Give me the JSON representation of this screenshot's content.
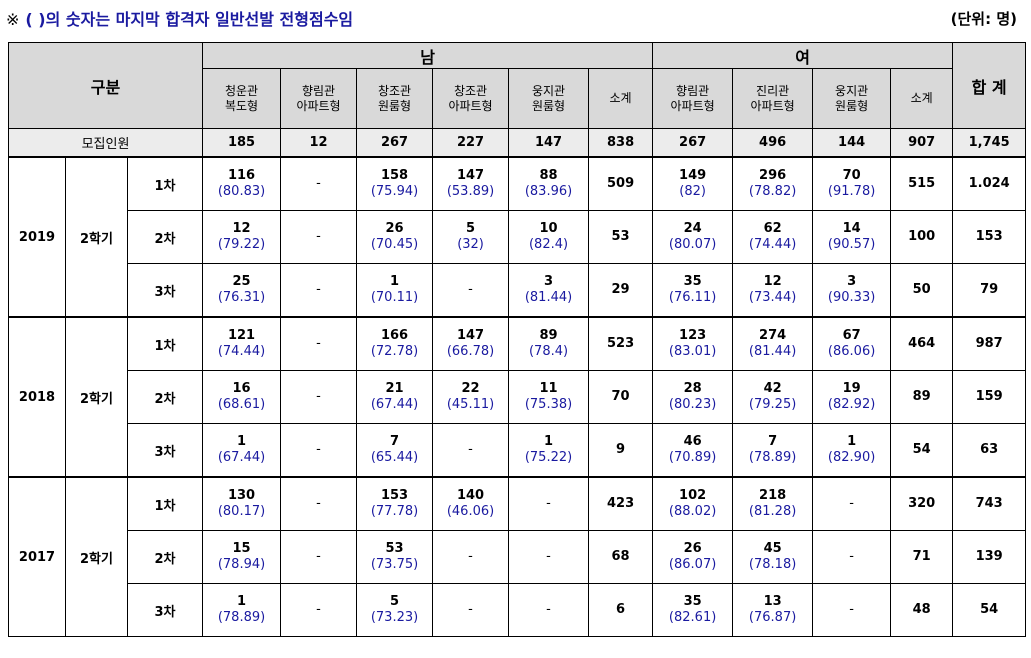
{
  "note": {
    "mark": "※",
    "text": "( )의 숫자는 마지막 합격자 일반선발 전형점수임"
  },
  "unit": "(단위: 명)",
  "header": {
    "category": "구분",
    "male": "남",
    "female": "여",
    "total": "합 계",
    "male_cols": [
      [
        "청운관",
        "복도형"
      ],
      [
        "향림관",
        "아파트형"
      ],
      [
        "창조관",
        "원룸형"
      ],
      [
        "창조관",
        "아파트형"
      ],
      [
        "웅지관",
        "원룸형"
      ],
      [
        "소계",
        ""
      ]
    ],
    "female_cols": [
      [
        "향림관",
        "아파트형"
      ],
      [
        "진리관",
        "아파트형"
      ],
      [
        "웅지관",
        "원룸형"
      ],
      [
        "소계",
        ""
      ]
    ]
  },
  "recruit": {
    "label": "모집인원",
    "values": [
      "185",
      "12",
      "267",
      "227",
      "147",
      "838",
      "267",
      "496",
      "144",
      "907",
      "1,745"
    ]
  },
  "groups": [
    {
      "year": "2019",
      "term": "2학기",
      "rows": [
        {
          "round": "1차",
          "cells": [
            [
              "116",
              "(80.83)"
            ],
            [
              "-",
              ""
            ],
            [
              "158",
              "(75.94)"
            ],
            [
              "147",
              "(53.89)"
            ],
            [
              "88",
              "(83.96)"
            ],
            [
              "509",
              ""
            ],
            [
              "149",
              "(82)"
            ],
            [
              "296",
              "(78.82)"
            ],
            [
              "70",
              "(91.78)"
            ],
            [
              "515",
              ""
            ],
            [
              "1.024",
              ""
            ]
          ]
        },
        {
          "round": "2차",
          "cells": [
            [
              "12",
              "(79.22)"
            ],
            [
              "-",
              ""
            ],
            [
              "26",
              "(70.45)"
            ],
            [
              "5",
              "(32)"
            ],
            [
              "10",
              "(82.4)"
            ],
            [
              "53",
              ""
            ],
            [
              "24",
              "(80.07)"
            ],
            [
              "62",
              "(74.44)"
            ],
            [
              "14",
              "(90.57)"
            ],
            [
              "100",
              ""
            ],
            [
              "153",
              ""
            ]
          ]
        },
        {
          "round": "3차",
          "cells": [
            [
              "25",
              "(76.31)"
            ],
            [
              "-",
              ""
            ],
            [
              "1",
              "(70.11)"
            ],
            [
              "-",
              ""
            ],
            [
              "3",
              "(81.44)"
            ],
            [
              "29",
              ""
            ],
            [
              "35",
              "(76.11)"
            ],
            [
              "12",
              "(73.44)"
            ],
            [
              "3",
              "(90.33)"
            ],
            [
              "50",
              ""
            ],
            [
              "79",
              ""
            ]
          ]
        }
      ]
    },
    {
      "year": "2018",
      "term": "2학기",
      "rows": [
        {
          "round": "1차",
          "cells": [
            [
              "121",
              "(74.44)"
            ],
            [
              "-",
              ""
            ],
            [
              "166",
              "(72.78)"
            ],
            [
              "147",
              "(66.78)"
            ],
            [
              "89",
              "(78.4)"
            ],
            [
              "523",
              ""
            ],
            [
              "123",
              "(83.01)"
            ],
            [
              "274",
              "(81.44)"
            ],
            [
              "67",
              "(86.06)"
            ],
            [
              "464",
              ""
            ],
            [
              "987",
              ""
            ]
          ]
        },
        {
          "round": "2차",
          "cells": [
            [
              "16",
              "(68.61)"
            ],
            [
              "-",
              ""
            ],
            [
              "21",
              "(67.44)"
            ],
            [
              "22",
              "(45.11)"
            ],
            [
              "11",
              "(75.38)"
            ],
            [
              "70",
              ""
            ],
            [
              "28",
              "(80.23)"
            ],
            [
              "42",
              "(79.25)"
            ],
            [
              "19",
              "(82.92)"
            ],
            [
              "89",
              ""
            ],
            [
              "159",
              ""
            ]
          ]
        },
        {
          "round": "3차",
          "cells": [
            [
              "1",
              "(67.44)"
            ],
            [
              "-",
              ""
            ],
            [
              "7",
              "(65.44)"
            ],
            [
              "-",
              ""
            ],
            [
              "1",
              "(75.22)"
            ],
            [
              "9",
              ""
            ],
            [
              "46",
              "(70.89)"
            ],
            [
              "7",
              "(78.89)"
            ],
            [
              "1",
              "(82.90)"
            ],
            [
              "54",
              ""
            ],
            [
              "63",
              ""
            ]
          ]
        }
      ]
    },
    {
      "year": "2017",
      "term": "2학기",
      "rows": [
        {
          "round": "1차",
          "cells": [
            [
              "130",
              "(80.17)"
            ],
            [
              "-",
              ""
            ],
            [
              "153",
              "(77.78)"
            ],
            [
              "140",
              "(46.06)"
            ],
            [
              "-",
              ""
            ],
            [
              "423",
              ""
            ],
            [
              "102",
              "(88.02)"
            ],
            [
              "218",
              "(81.28)"
            ],
            [
              "-",
              ""
            ],
            [
              "320",
              ""
            ],
            [
              "743",
              ""
            ]
          ]
        },
        {
          "round": "2차",
          "cells": [
            [
              "15",
              "(78.94)"
            ],
            [
              "-",
              ""
            ],
            [
              "53",
              "(73.75)"
            ],
            [
              "-",
              ""
            ],
            [
              "-",
              ""
            ],
            [
              "68",
              ""
            ],
            [
              "26",
              "(86.07)"
            ],
            [
              "45",
              "(78.18)"
            ],
            [
              "-",
              ""
            ],
            [
              "71",
              ""
            ],
            [
              "139",
              ""
            ]
          ]
        },
        {
          "round": "3차",
          "cells": [
            [
              "1",
              "(78.89)"
            ],
            [
              "-",
              ""
            ],
            [
              "5",
              "(73.23)"
            ],
            [
              "-",
              ""
            ],
            [
              "-",
              ""
            ],
            [
              "6",
              ""
            ],
            [
              "35",
              "(82.61)"
            ],
            [
              "13",
              "(76.87)"
            ],
            [
              "-",
              ""
            ],
            [
              "48",
              ""
            ],
            [
              "54",
              ""
            ]
          ]
        }
      ]
    }
  ]
}
